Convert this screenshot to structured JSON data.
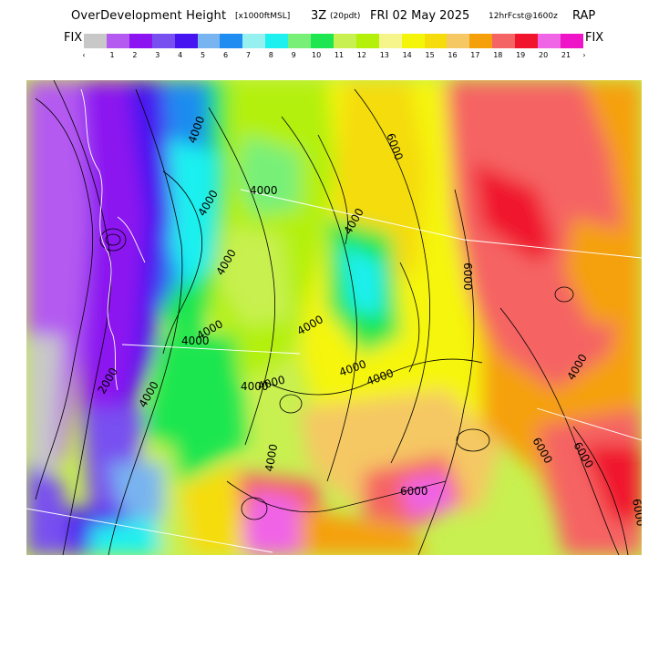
{
  "header": {
    "title": "OverDevelopment Height",
    "units": "[x1000ftMSL]",
    "hour": "3Z",
    "local_time": "(20pdt)",
    "date": "FRI 02 May 2025",
    "forecast": "12hrFcst@1600z",
    "model": "RAP"
  },
  "colorbar": {
    "left_label": "FIX",
    "right_label": "FIX",
    "low_arrow": "‹",
    "high_arrow": "›",
    "ticks": [
      "1",
      "2",
      "3",
      "4",
      "5",
      "6",
      "7",
      "8",
      "9",
      "10",
      "11",
      "12",
      "13",
      "14",
      "15",
      "16",
      "17",
      "18",
      "19",
      "20",
      "21"
    ],
    "colors": [
      "#c8c8c8",
      "#b45af0",
      "#8c14f0",
      "#7850f0",
      "#4614f0",
      "#78b4f0",
      "#1e8cf0",
      "#96f0f0",
      "#1ef0f0",
      "#78f078",
      "#1ee650",
      "#c8f050",
      "#b4f00a",
      "#f5f58c",
      "#f5f50a",
      "#f5dc0a",
      "#f5c864",
      "#f5a00a",
      "#f56464",
      "#f0142d",
      "#f064e6",
      "#f014c8"
    ]
  },
  "map": {
    "contour_labels": [
      "6000",
      "4000",
      "4000",
      "4000",
      "4000",
      "4000",
      "4000",
      "2000",
      "4000",
      "4000",
      "4000",
      "4000",
      "6000",
      "4000",
      "4000",
      "4000",
      "4000",
      "6000",
      "6000",
      "6000",
      "4000",
      "6000"
    ]
  }
}
